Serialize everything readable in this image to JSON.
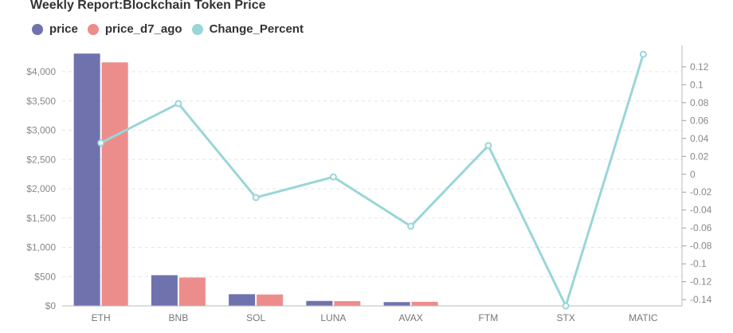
{
  "chart_data": {
    "type": "bar",
    "title": "Weekly Report:Blockchain Token Price",
    "categories": [
      "ETH",
      "BNB",
      "SOL",
      "LUNA",
      "AVAX",
      "FTM",
      "STX",
      "MATIC"
    ],
    "series": [
      {
        "name": "price",
        "type": "bar",
        "axis": "left",
        "color": "#6f72ad",
        "values": [
          4310,
          525,
          200,
          85,
          65,
          3,
          1,
          1
        ]
      },
      {
        "name": "price_d7_ago",
        "type": "bar",
        "axis": "left",
        "color": "#ec8d8b",
        "values": [
          4160,
          485,
          195,
          82,
          70,
          2,
          1,
          1
        ]
      },
      {
        "name": "Change_Percent",
        "type": "line",
        "axis": "right",
        "color": "#99d6d8",
        "values": [
          0.035,
          0.079,
          -0.026,
          -0.003,
          -0.058,
          0.032,
          -0.147,
          0.134
        ]
      }
    ],
    "y_left": {
      "min": 0,
      "max": 4300,
      "ticks": [
        0,
        500,
        1000,
        1500,
        2000,
        2500,
        3000,
        3500,
        4000
      ],
      "tick_labels": [
        "$0",
        "$500",
        "$1,000",
        "$1,500",
        "$2,000",
        "$2,500",
        "$3,000",
        "$3,500",
        "$4,000"
      ]
    },
    "y_right": {
      "min": -0.147,
      "max": 0.135,
      "ticks": [
        -0.14,
        -0.12,
        -0.1,
        -0.08,
        -0.06,
        -0.04,
        -0.02,
        0,
        0.02,
        0.04,
        0.06,
        0.08,
        0.1,
        0.12
      ],
      "tick_labels": [
        "-0.14",
        "-0.12",
        "-0.1",
        "-0.08",
        "-0.06",
        "-0.04",
        "-0.02",
        "0",
        "0.02",
        "0.04",
        "0.06",
        "0.08",
        "0.1",
        "0.12"
      ]
    },
    "grid": true,
    "legend": "top-left"
  }
}
